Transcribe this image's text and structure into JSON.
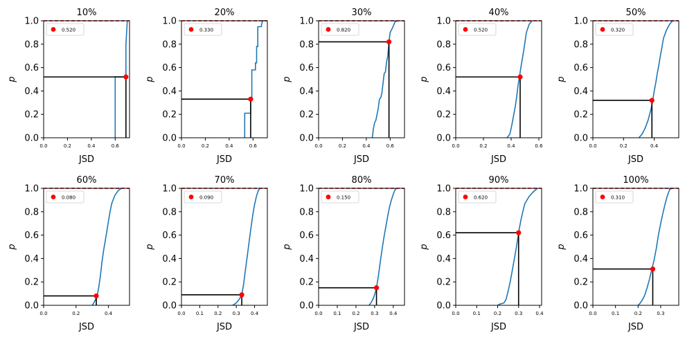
{
  "chart_data": [
    {
      "type": "line",
      "title": "10%",
      "xlabel": "JSD",
      "ylabel": "p",
      "xlim": [
        0,
        0.72
      ],
      "ylim": [
        0,
        1
      ],
      "xticks": [
        "0.0",
        "0.2",
        "0.4",
        "0.6"
      ],
      "yticks": [
        "0.0",
        "0.2",
        "0.4",
        "0.6",
        "0.8",
        "1.0"
      ],
      "legend": {
        "label": "0.520",
        "position": "top-left"
      },
      "marker": {
        "x": 0.69,
        "y": 0.52
      },
      "line_color": "#1f77b4",
      "marker_color": "#ff0000",
      "dashed_color": "#d62728",
      "series": [
        {
          "x": [
            0.6,
            0.6,
            0.61,
            0.61,
            0.69,
            0.69,
            0.69,
            0.69,
            0.7,
            0.7
          ],
          "y": [
            0.0,
            0.52,
            0.52,
            0.52,
            0.52,
            0.53,
            0.6,
            0.8,
            0.98,
            1.0
          ]
        }
      ]
    },
    {
      "type": "line",
      "title": "20%",
      "xlabel": "JSD",
      "ylabel": "p",
      "xlim": [
        0,
        0.72
      ],
      "ylim": [
        0,
        1
      ],
      "xticks": [
        "0.0",
        "0.2",
        "0.4",
        "0.6"
      ],
      "yticks": [
        "0.0",
        "0.2",
        "0.4",
        "0.6",
        "0.8",
        "1.0"
      ],
      "legend": {
        "label": "0.330",
        "position": "top-left"
      },
      "marker": {
        "x": 0.58,
        "y": 0.33
      },
      "series": [
        {
          "x": [
            0.53,
            0.53,
            0.58,
            0.58,
            0.59,
            0.59,
            0.62,
            0.62,
            0.63,
            0.63,
            0.64,
            0.64,
            0.67,
            0.67,
            0.68,
            0.7
          ],
          "y": [
            0.0,
            0.21,
            0.21,
            0.33,
            0.33,
            0.58,
            0.58,
            0.64,
            0.64,
            0.78,
            0.78,
            0.95,
            0.95,
            0.96,
            1.0,
            1.0
          ]
        }
      ]
    },
    {
      "type": "line",
      "title": "30%",
      "xlabel": "JSD",
      "ylabel": "p",
      "xlim": [
        0,
        0.72
      ],
      "ylim": [
        0,
        1
      ],
      "xticks": [
        "0.0",
        "0.2",
        "0.4",
        "0.6"
      ],
      "yticks": [
        "0.0",
        "0.2",
        "0.4",
        "0.6",
        "0.8",
        "1.0"
      ],
      "legend": {
        "label": "0.820",
        "position": "top-left"
      },
      "marker": {
        "x": 0.59,
        "y": 0.82
      },
      "series": [
        {
          "x": [
            0.45,
            0.46,
            0.47,
            0.48,
            0.5,
            0.51,
            0.52,
            0.53,
            0.55,
            0.56,
            0.57,
            0.58,
            0.59,
            0.6,
            0.62,
            0.64,
            0.66
          ],
          "y": [
            0.0,
            0.08,
            0.13,
            0.15,
            0.25,
            0.33,
            0.34,
            0.38,
            0.55,
            0.56,
            0.65,
            0.7,
            0.82,
            0.9,
            0.94,
            0.99,
            1.0
          ]
        }
      ]
    },
    {
      "type": "line",
      "title": "40%",
      "xlabel": "JSD",
      "ylabel": "p",
      "xlim": [
        0,
        0.62
      ],
      "ylim": [
        0,
        1
      ],
      "xticks": [
        "0.0",
        "0.2",
        "0.4",
        "0.6"
      ],
      "yticks": [
        "0.0",
        "0.2",
        "0.4",
        "0.6",
        "0.8",
        "1.0"
      ],
      "legend": {
        "label": "0.520",
        "position": "top-left"
      },
      "marker": {
        "x": 0.465,
        "y": 0.52
      },
      "series": [
        {
          "x": [
            0.37,
            0.39,
            0.4,
            0.41,
            0.43,
            0.44,
            0.45,
            0.46,
            0.47,
            0.48,
            0.49,
            0.5,
            0.51,
            0.53,
            0.55
          ],
          "y": [
            0.0,
            0.03,
            0.08,
            0.14,
            0.27,
            0.35,
            0.45,
            0.52,
            0.6,
            0.67,
            0.74,
            0.82,
            0.9,
            0.97,
            1.0
          ]
        }
      ]
    },
    {
      "type": "line",
      "title": "50%",
      "xlabel": "JSD",
      "ylabel": "p",
      "xlim": [
        0,
        0.56
      ],
      "ylim": [
        0,
        1
      ],
      "xticks": [
        "0.0",
        "0.2",
        "0.4"
      ],
      "yticks": [
        "0.0",
        "0.2",
        "0.4",
        "0.6",
        "0.8",
        "1.0"
      ],
      "legend": {
        "label": "0.320",
        "position": "top-left"
      },
      "marker": {
        "x": 0.385,
        "y": 0.32
      },
      "series": [
        {
          "x": [
            0.3,
            0.32,
            0.34,
            0.36,
            0.37,
            0.38,
            0.39,
            0.4,
            0.41,
            0.42,
            0.43,
            0.44,
            0.45,
            0.46,
            0.48,
            0.5,
            0.52
          ],
          "y": [
            0.0,
            0.03,
            0.08,
            0.15,
            0.2,
            0.25,
            0.32,
            0.4,
            0.47,
            0.55,
            0.62,
            0.7,
            0.77,
            0.85,
            0.92,
            0.97,
            1.0
          ]
        }
      ]
    },
    {
      "type": "line",
      "title": "60%",
      "xlabel": "JSD",
      "ylabel": "p",
      "xlim": [
        0,
        0.53
      ],
      "ylim": [
        0,
        1
      ],
      "xticks": [
        "0.0",
        "0.2",
        "0.4"
      ],
      "yticks": [
        "0.0",
        "0.2",
        "0.4",
        "0.6",
        "0.8",
        "1.0"
      ],
      "legend": {
        "label": "0.080",
        "position": "top-left"
      },
      "marker": {
        "x": 0.325,
        "y": 0.08
      },
      "series": [
        {
          "x": [
            0.3,
            0.31,
            0.32,
            0.33,
            0.34,
            0.35,
            0.36,
            0.37,
            0.38,
            0.39,
            0.4,
            0.41,
            0.42,
            0.44,
            0.46,
            0.48
          ],
          "y": [
            0.0,
            0.02,
            0.05,
            0.08,
            0.15,
            0.25,
            0.37,
            0.47,
            0.55,
            0.63,
            0.72,
            0.8,
            0.87,
            0.94,
            0.98,
            1.0
          ]
        }
      ]
    },
    {
      "type": "line",
      "title": "70%",
      "xlabel": "JSD",
      "ylabel": "p",
      "xlim": [
        0,
        0.47
      ],
      "ylim": [
        0,
        1
      ],
      "xticks": [
        "0.0",
        "0.1",
        "0.2",
        "0.3",
        "0.4"
      ],
      "yticks": [
        "0.0",
        "0.2",
        "0.4",
        "0.6",
        "0.8",
        "1.0"
      ],
      "legend": {
        "label": "0.090",
        "position": "top-left"
      },
      "marker": {
        "x": 0.33,
        "y": 0.09
      },
      "series": [
        {
          "x": [
            0.28,
            0.3,
            0.31,
            0.32,
            0.33,
            0.34,
            0.35,
            0.36,
            0.37,
            0.38,
            0.39,
            0.4,
            0.41,
            0.42,
            0.43
          ],
          "y": [
            0.0,
            0.02,
            0.04,
            0.06,
            0.09,
            0.18,
            0.3,
            0.42,
            0.54,
            0.66,
            0.77,
            0.86,
            0.93,
            0.98,
            1.0
          ]
        }
      ]
    },
    {
      "type": "line",
      "title": "80%",
      "xlabel": "JSD",
      "ylabel": "p",
      "xlim": [
        0,
        0.46
      ],
      "ylim": [
        0,
        1
      ],
      "xticks": [
        "0.0",
        "0.1",
        "0.2",
        "0.3",
        "0.4"
      ],
      "yticks": [
        "0.0",
        "0.2",
        "0.4",
        "0.6",
        "0.8",
        "1.0"
      ],
      "legend": {
        "label": "0.150",
        "position": "top-left"
      },
      "marker": {
        "x": 0.31,
        "y": 0.15
      },
      "series": [
        {
          "x": [
            0.27,
            0.28,
            0.29,
            0.3,
            0.31,
            0.32,
            0.33,
            0.34,
            0.35,
            0.36,
            0.37,
            0.38,
            0.39,
            0.4,
            0.41,
            0.42
          ],
          "y": [
            0.0,
            0.02,
            0.05,
            0.09,
            0.15,
            0.25,
            0.37,
            0.48,
            0.58,
            0.67,
            0.76,
            0.84,
            0.9,
            0.95,
            0.99,
            1.0
          ]
        }
      ]
    },
    {
      "type": "line",
      "title": "90%",
      "xlabel": "JSD",
      "ylabel": "p",
      "xlim": [
        0,
        0.41
      ],
      "ylim": [
        0,
        1
      ],
      "xticks": [
        "0.0",
        "0.1",
        "0.2",
        "0.3",
        "0.4"
      ],
      "yticks": [
        "0.0",
        "0.2",
        "0.4",
        "0.6",
        "0.8",
        "1.0"
      ],
      "legend": {
        "label": "0.620",
        "position": "top-left"
      },
      "marker": {
        "x": 0.3,
        "y": 0.62
      },
      "series": [
        {
          "x": [
            0.2,
            0.21,
            0.23,
            0.24,
            0.25,
            0.26,
            0.27,
            0.28,
            0.29,
            0.3,
            0.31,
            0.32,
            0.33,
            0.35,
            0.37,
            0.39
          ],
          "y": [
            0.0,
            0.01,
            0.02,
            0.05,
            0.12,
            0.2,
            0.3,
            0.4,
            0.5,
            0.62,
            0.72,
            0.8,
            0.87,
            0.93,
            0.97,
            1.0
          ]
        }
      ]
    },
    {
      "type": "line",
      "title": "100%",
      "xlabel": "JSD",
      "ylabel": "p",
      "xlim": [
        0,
        0.38
      ],
      "ylim": [
        0,
        1
      ],
      "xticks": [
        "0.0",
        "0.1",
        "0.2",
        "0.3"
      ],
      "yticks": [
        "0.0",
        "0.2",
        "0.4",
        "0.6",
        "0.8",
        "1.0"
      ],
      "legend": {
        "label": "0.310",
        "position": "top-left"
      },
      "marker": {
        "x": 0.265,
        "y": 0.31
      },
      "series": [
        {
          "x": [
            0.2,
            0.21,
            0.22,
            0.23,
            0.24,
            0.25,
            0.26,
            0.27,
            0.28,
            0.29,
            0.3,
            0.31,
            0.32,
            0.33,
            0.34,
            0.35
          ],
          "y": [
            0.0,
            0.02,
            0.05,
            0.09,
            0.15,
            0.22,
            0.3,
            0.38,
            0.48,
            0.6,
            0.7,
            0.79,
            0.87,
            0.94,
            0.99,
            1.0
          ]
        }
      ]
    }
  ]
}
